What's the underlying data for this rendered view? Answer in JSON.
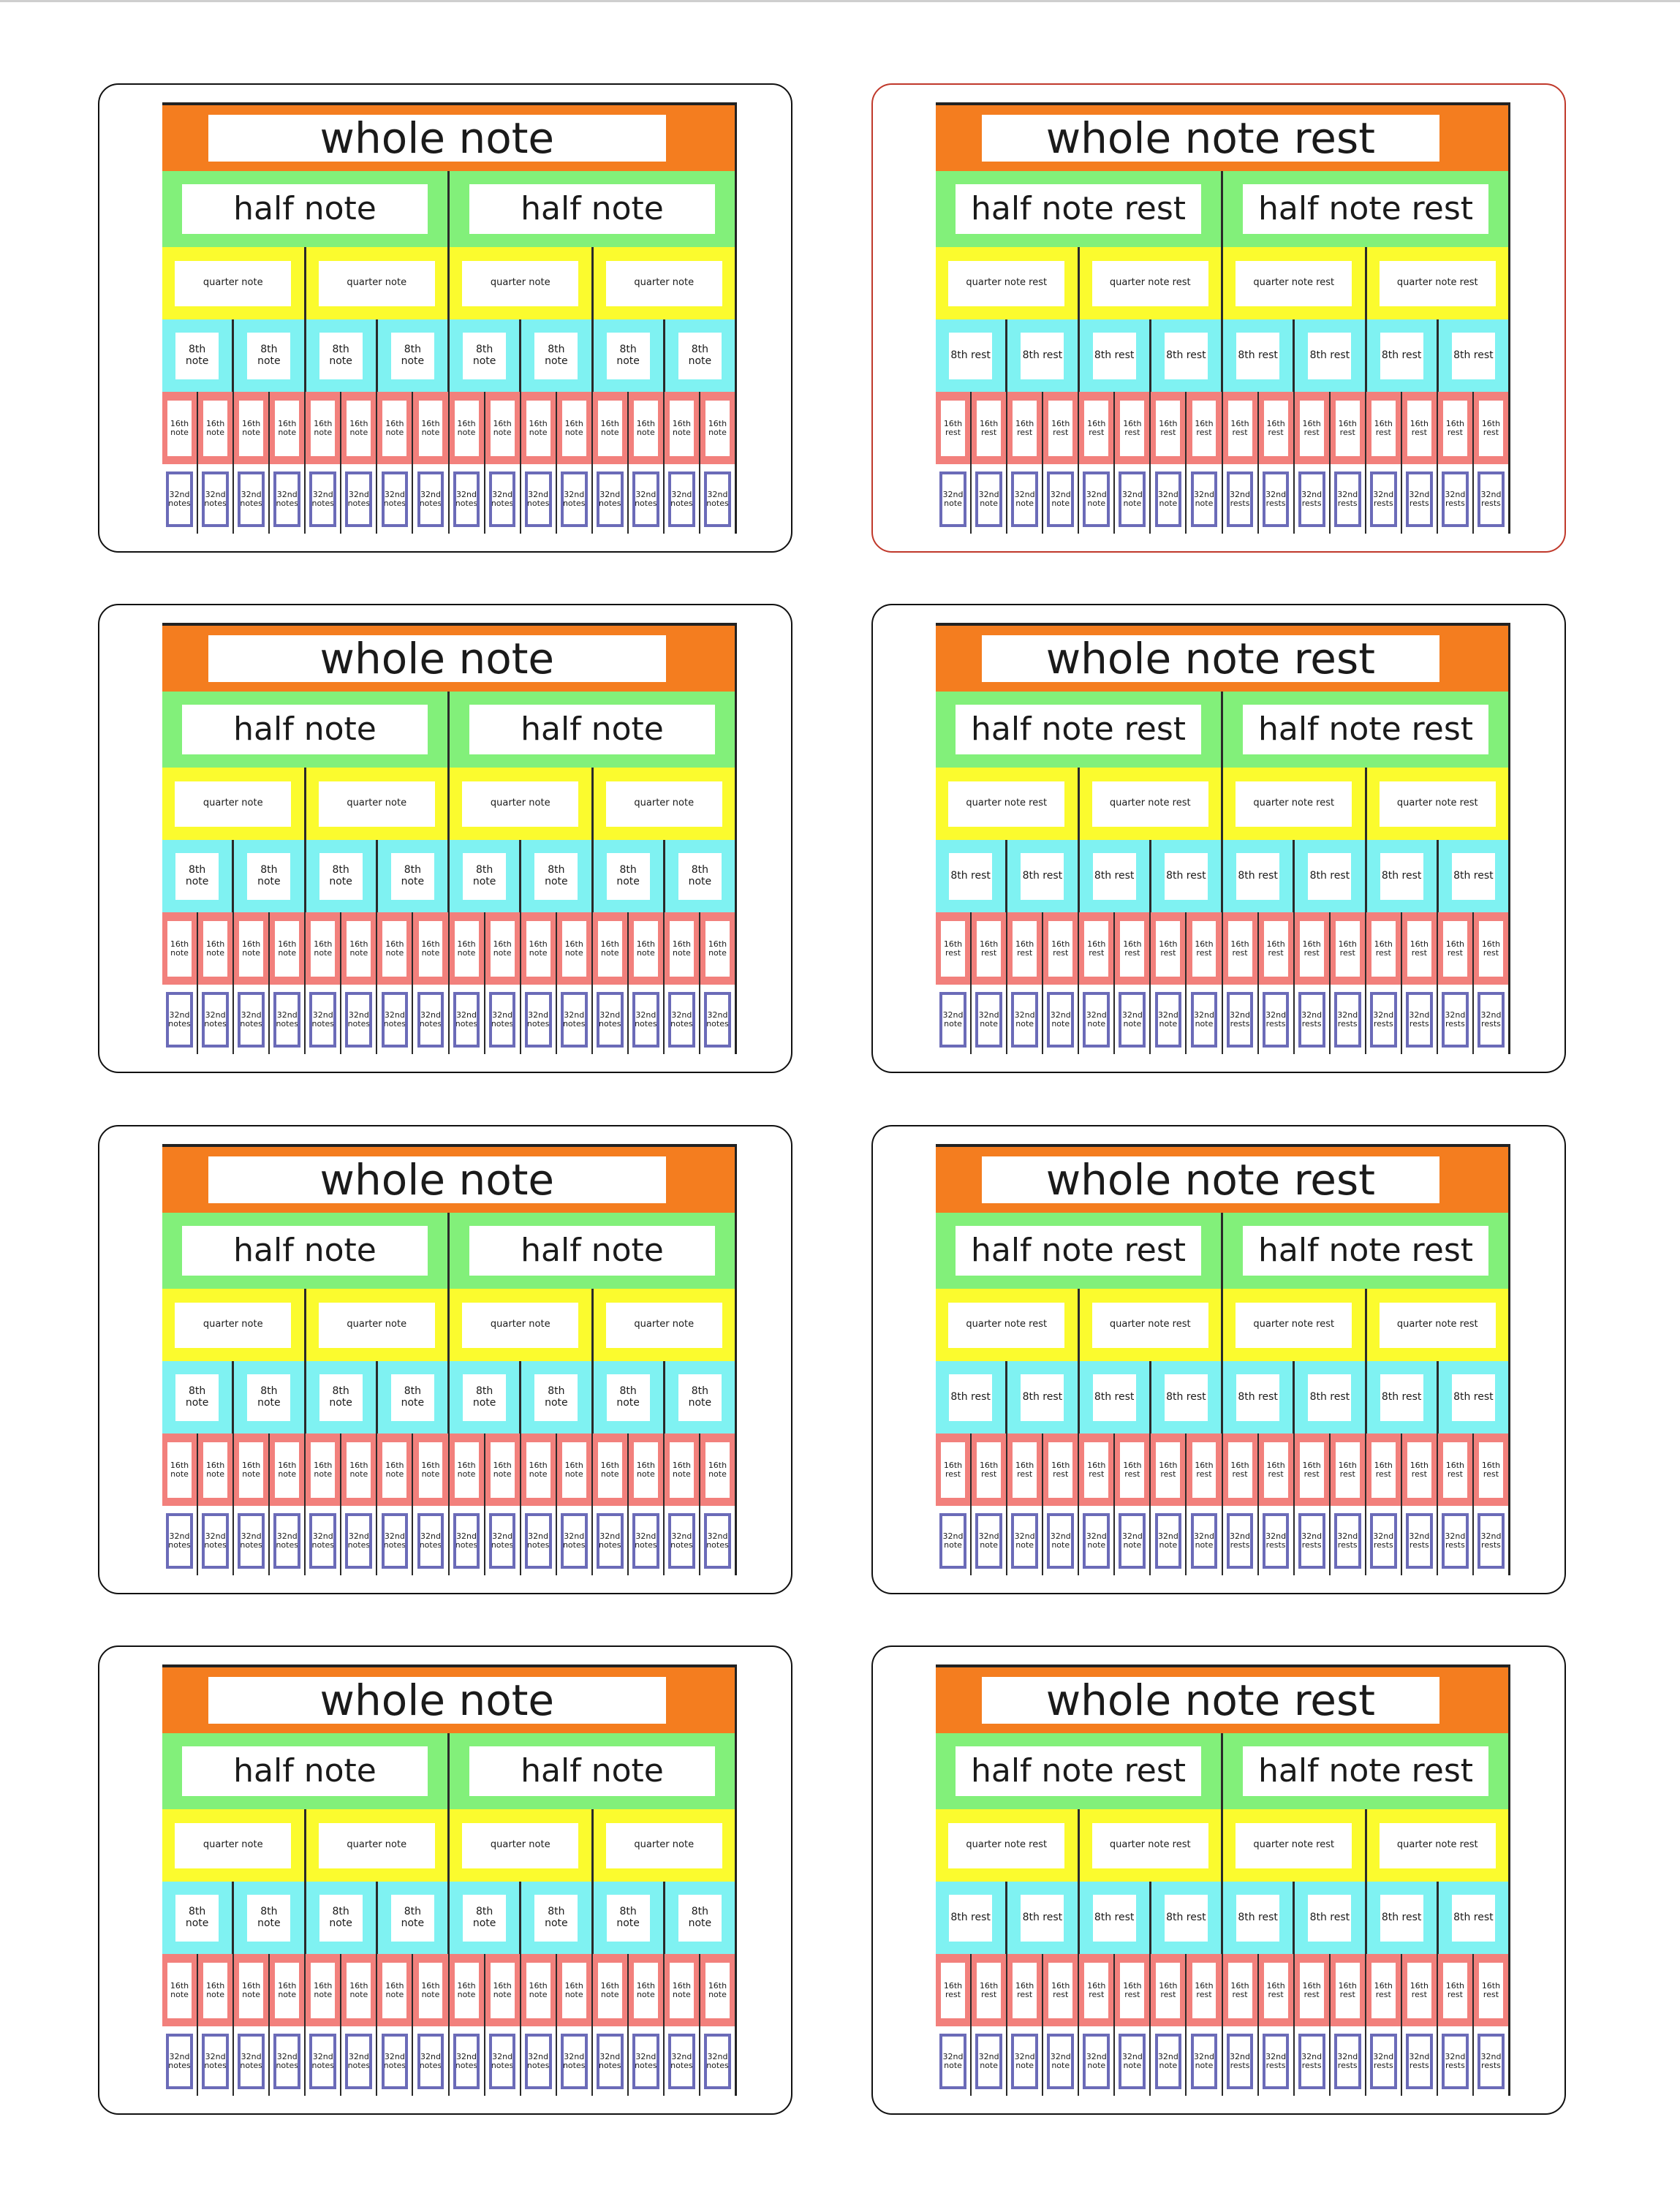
{
  "colors": {
    "whole": "#f47d1f",
    "half": "#82f07a",
    "quarter": "#fbfb2e",
    "eighth": "#7ff2f2",
    "sixteenth": "#f2807c",
    "thirtysecond_border": "#6b6bb8",
    "selected_card_border": "#c0392b"
  },
  "note_chart": {
    "whole": "whole note",
    "half": "half note",
    "quarter": "quarter note",
    "eighth": "8th note",
    "sixteenth": "16th note",
    "thirtysecond": "32nd note",
    "thirtysecond_plural": "32nd notes"
  },
  "rest_chart": {
    "whole": "whole note rest",
    "half": "half note rest",
    "quarter": "quarter note rest",
    "eighth": "8th rest",
    "sixteenth": "16th rest",
    "thirtysecond": "32nd rest",
    "thirtysecond_note": "32nd note",
    "thirtysecond_rests": "32nd rests"
  },
  "cards": [
    {
      "id": "note-card-1",
      "kind": "note",
      "selected": false
    },
    {
      "id": "rest-card-1",
      "kind": "rest",
      "selected": true
    },
    {
      "id": "note-card-2",
      "kind": "note",
      "selected": false
    },
    {
      "id": "rest-card-2",
      "kind": "rest",
      "selected": false
    },
    {
      "id": "note-card-3",
      "kind": "note",
      "selected": false
    },
    {
      "id": "rest-card-3",
      "kind": "rest",
      "selected": false
    },
    {
      "id": "note-card-4",
      "kind": "note",
      "selected": false
    },
    {
      "id": "rest-card-4",
      "kind": "rest",
      "selected": false
    }
  ]
}
